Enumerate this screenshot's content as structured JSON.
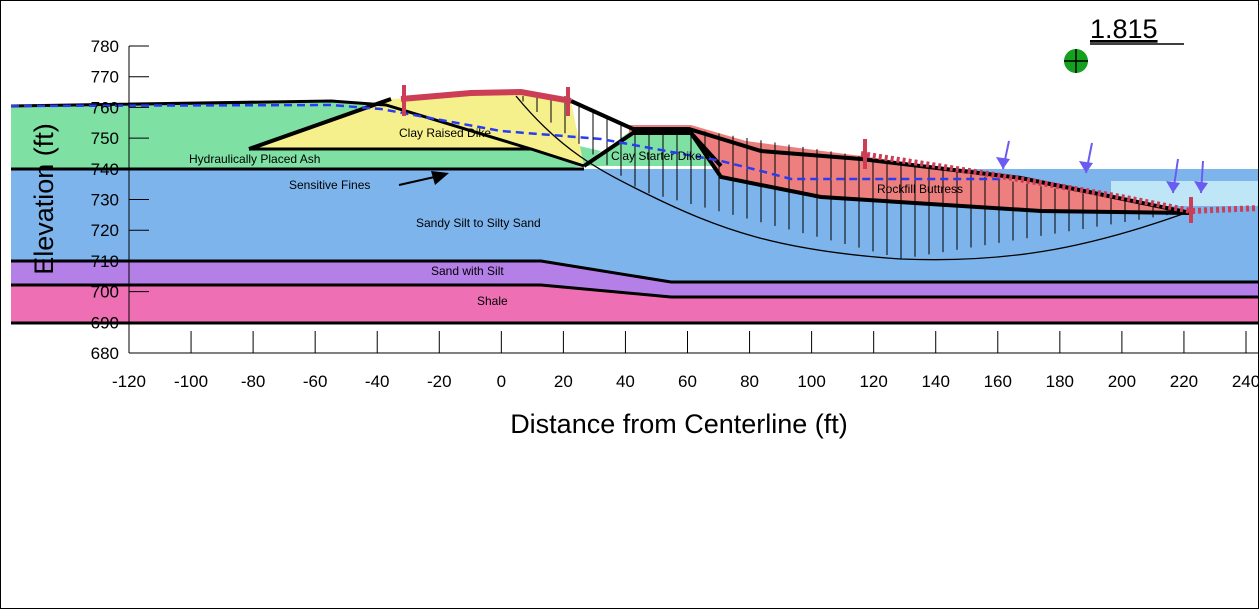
{
  "factor_of_safety": "1.815",
  "x_axis": {
    "title": "Distance from Centerline (ft)",
    "min": -120,
    "max": 240,
    "ticks": [
      -120,
      -100,
      -80,
      -60,
      -40,
      -20,
      0,
      20,
      40,
      60,
      80,
      100,
      120,
      140,
      160,
      180,
      200,
      220,
      240
    ]
  },
  "y_axis": {
    "title": "Elevation (ft)",
    "min": 680,
    "max": 780,
    "ticks": [
      780,
      770,
      760,
      750,
      740,
      730,
      720,
      710,
      700,
      690,
      680
    ]
  },
  "materials": {
    "clay_raised_dike": "Clay Raised Dike",
    "hydraulically_placed_ash": "Hydraulically Placed Ash",
    "clay_starter_dike": "Clay Starter Dike",
    "sensitive_fines": "Sensitive Fines",
    "rockfill_buttress": "Rockfill Buttress",
    "sandy_silt": "Sandy Silt to Silty Sand",
    "sand_with_silt": "Sand with Silt",
    "shale": "Shale"
  },
  "colors": {
    "ash": "#7fe0a4",
    "clay": "#f5ef8c",
    "sandy_silt": "#7db4ec",
    "sand_with_silt": "#b57fe8",
    "shale": "#ee6fb4",
    "rockfill": "#ee7f7f",
    "water": "#2a3cf0",
    "slip_surface": "#cc3e55",
    "center": "#16a020",
    "load_arrow": "#6a5cf0",
    "pond": "#bfe6f6"
  }
}
